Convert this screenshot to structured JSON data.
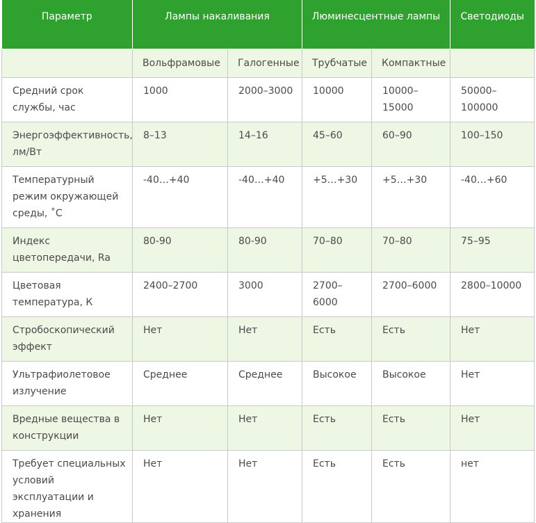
{
  "header": {
    "parameter": "Параметр",
    "incandescent": "Лампы накаливания",
    "fluorescent": "Люминесцентные лампы",
    "led": "Светодиоды"
  },
  "subheader": {
    "tungsten": "Вольфрамовые",
    "halogen": "Галогенные",
    "tubular": "Трубчатые",
    "compact": "Компактные"
  },
  "rows": [
    {
      "param": "Средний срок службы, час",
      "tungsten": "1000",
      "halogen": "2000–3000",
      "tubular": "10000",
      "compact": "10000–15000",
      "led": "50000–100000"
    },
    {
      "param": "Энергоэффективность, лм/Вт",
      "tungsten": "8–13",
      "halogen": "14–16",
      "tubular": "45–60",
      "compact": "60–90",
      "led": "100–150"
    },
    {
      "param": "Температурный режим окружающей среды, ˚С",
      "tungsten": "-40…+40",
      "halogen": "-40…+40",
      "tubular": "+5…+30",
      "compact": "+5…+30",
      "led": "-40…+60"
    },
    {
      "param": "Индекс цветопередачи, Ra",
      "tungsten": "80-90",
      "halogen": "80-90",
      "tubular": "70–80",
      "compact": "70–80",
      "led": "75–95"
    },
    {
      "param": "Цветовая температура, К",
      "tungsten": "2400–2700",
      "halogen": "3000",
      "tubular": "2700–6000",
      "compact": "2700–6000",
      "led": "2800–10000"
    },
    {
      "param": "Стробоскопический эффект",
      "tungsten": "Нет",
      "halogen": "Нет",
      "tubular": "Есть",
      "compact": "Есть",
      "led": "Нет"
    },
    {
      "param": "Ультрафиолетовое излучение",
      "tungsten": "Среднее",
      "halogen": "Среднее",
      "tubular": "Высокое",
      "compact": "Высокое",
      "led": "Нет"
    },
    {
      "param": "Вредные вещества в конструкции",
      "tungsten": "Нет",
      "halogen": "Нет",
      "tubular": "Есть",
      "compact": "Есть",
      "led": "Нет"
    },
    {
      "param": "Требует специальных условий эксплуатации и хранения",
      "tungsten": "Нет",
      "halogen": "Нет",
      "tubular": "Есть",
      "compact": "Есть",
      "led": "нет"
    }
  ]
}
